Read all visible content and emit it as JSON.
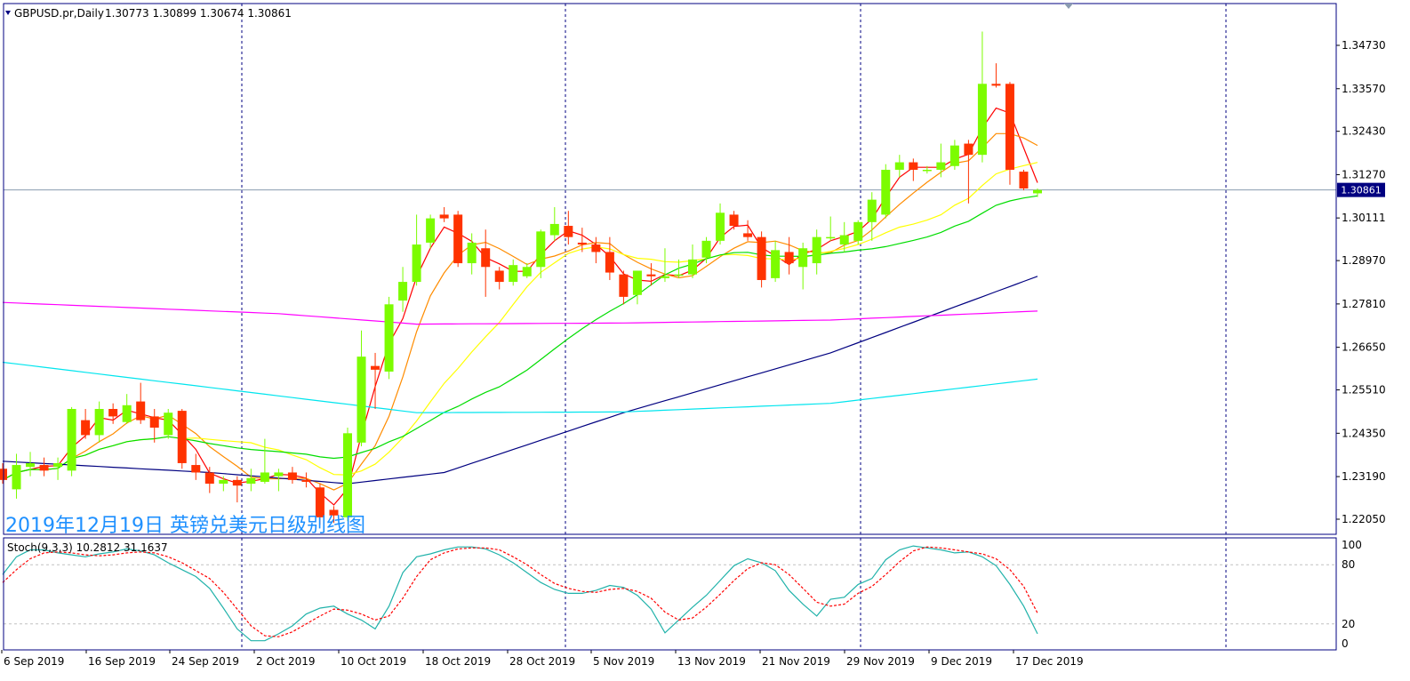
{
  "header": {
    "symbol": "GBPUSD.pr,Daily",
    "ohlc": "1.30773 1.30899 1.30674 1.30861"
  },
  "annotation": "2019年12月19日 英镑兑美元日级别线图",
  "price_tag": "1.30861",
  "stoch_label": "Stoch(9,3,3) 10.2812 31.1637",
  "colors": {
    "bull": "#7cfc00",
    "bear": "#ff3300",
    "ma_red": "#ff0000",
    "ma_orange": "#ff8c00",
    "ma_yellow": "#ffff00",
    "ma_green": "#00dd00",
    "ma_navy": "#000080",
    "ma_magenta": "#ff00ff",
    "ma_cyan": "#00e5ee",
    "frame": "#000080",
    "annotation": "#1e90ff"
  },
  "chart_data": {
    "type": "candlestick",
    "y_ticks": [
      "1.34730",
      "1.33570",
      "1.32430",
      "1.31270",
      "1.30111",
      "1.28970",
      "1.27810",
      "1.26650",
      "1.25510",
      "1.24350",
      "1.23190",
      "1.22050"
    ],
    "ylim": [
      1.219,
      1.3505
    ],
    "x_ticks": [
      "6 Sep 2019",
      "16 Sep 2019",
      "24 Sep 2019",
      "2 Oct 2019",
      "10 Oct 2019",
      "18 Oct 2019",
      "28 Oct 2019",
      "5 Nov 2019",
      "13 Nov 2019",
      "21 Nov 2019",
      "29 Nov 2019",
      "9 Dec 2019",
      "17 Dec 2019"
    ],
    "candles": [
      [
        1.234,
        1.2355,
        1.23,
        1.231
      ],
      [
        1.2285,
        1.238,
        1.226,
        1.235
      ],
      [
        1.2345,
        1.2385,
        1.232,
        1.2355
      ],
      [
        1.235,
        1.237,
        1.232,
        1.2335
      ],
      [
        1.2345,
        1.237,
        1.231,
        1.2355
      ],
      [
        1.2335,
        1.2505,
        1.232,
        1.25
      ],
      [
        1.247,
        1.25,
        1.242,
        1.243
      ],
      [
        1.243,
        1.252,
        1.241,
        1.25
      ],
      [
        1.25,
        1.2515,
        1.246,
        1.248
      ],
      [
        1.2465,
        1.254,
        1.246,
        1.251
      ],
      [
        1.252,
        1.257,
        1.246,
        1.247
      ],
      [
        1.248,
        1.25,
        1.241,
        1.245
      ],
      [
        1.243,
        1.25,
        1.242,
        1.249
      ],
      [
        1.2495,
        1.25,
        1.234,
        1.2355
      ],
      [
        1.235,
        1.238,
        1.231,
        1.233
      ],
      [
        1.233,
        1.2345,
        1.2275,
        1.23
      ],
      [
        1.23,
        1.232,
        1.228,
        1.231
      ],
      [
        1.231,
        1.232,
        1.225,
        1.2295
      ],
      [
        1.23,
        1.234,
        1.228,
        1.2315
      ],
      [
        1.2305,
        1.242,
        1.23,
        1.233
      ],
      [
        1.232,
        1.234,
        1.228,
        1.233
      ],
      [
        1.233,
        1.2345,
        1.23,
        1.231
      ],
      [
        1.231,
        1.233,
        1.229,
        1.2305
      ],
      [
        1.229,
        1.23,
        1.219,
        1.221
      ],
      [
        1.223,
        1.224,
        1.2195,
        1.2215
      ],
      [
        1.221,
        1.245,
        1.22,
        1.2435
      ],
      [
        1.241,
        1.271,
        1.24,
        1.264
      ],
      [
        1.2615,
        1.265,
        1.25,
        1.2605
      ],
      [
        1.26,
        1.28,
        1.258,
        1.278
      ],
      [
        1.279,
        1.288,
        1.276,
        1.284
      ],
      [
        1.284,
        1.302,
        1.283,
        1.294
      ],
      [
        1.2945,
        1.302,
        1.293,
        1.301
      ],
      [
        1.302,
        1.304,
        1.3,
        1.301
      ],
      [
        1.302,
        1.303,
        1.288,
        1.289
      ],
      [
        1.289,
        1.297,
        1.286,
        1.2945
      ],
      [
        1.293,
        1.298,
        1.28,
        1.288
      ],
      [
        1.287,
        1.288,
        1.282,
        1.284
      ],
      [
        1.284,
        1.29,
        1.283,
        1.2885
      ],
      [
        1.2855,
        1.289,
        1.285,
        1.288
      ],
      [
        1.288,
        1.298,
        1.285,
        1.2975
      ],
      [
        1.2965,
        1.304,
        1.295,
        1.2995
      ],
      [
        1.299,
        1.303,
        1.294,
        1.296
      ],
      [
        1.2945,
        1.2985,
        1.292,
        1.294
      ],
      [
        1.294,
        1.296,
        1.289,
        1.292
      ],
      [
        1.292,
        1.296,
        1.2845,
        1.2865
      ],
      [
        1.286,
        1.287,
        1.278,
        1.28
      ],
      [
        1.2805,
        1.287,
        1.278,
        1.287
      ],
      [
        1.286,
        1.289,
        1.283,
        1.2855
      ],
      [
        1.285,
        1.293,
        1.284,
        1.2855
      ],
      [
        1.286,
        1.29,
        1.285,
        1.286
      ],
      [
        1.286,
        1.294,
        1.285,
        1.29
      ],
      [
        1.2905,
        1.296,
        1.289,
        1.295
      ],
      [
        1.295,
        1.305,
        1.294,
        1.3025
      ],
      [
        1.302,
        1.303,
        1.298,
        1.299
      ],
      [
        1.297,
        1.3005,
        1.295,
        1.296
      ],
      [
        1.296,
        1.2975,
        1.2825,
        1.2845
      ],
      [
        1.285,
        1.295,
        1.284,
        1.2925
      ],
      [
        1.292,
        1.296,
        1.286,
        1.289
      ],
      [
        1.288,
        1.2945,
        1.282,
        1.293
      ],
      [
        1.289,
        1.298,
        1.286,
        1.296
      ],
      [
        1.296,
        1.3015,
        1.295,
        1.296
      ],
      [
        1.294,
        1.3,
        1.292,
        1.2965
      ],
      [
        1.295,
        1.3005,
        1.294,
        1.3
      ],
      [
        1.3,
        1.308,
        1.295,
        1.306
      ],
      [
        1.302,
        1.3155,
        1.301,
        1.314
      ],
      [
        1.314,
        1.318,
        1.312,
        1.316
      ],
      [
        1.316,
        1.317,
        1.311,
        1.314
      ],
      [
        1.314,
        1.315,
        1.313,
        1.314
      ],
      [
        1.314,
        1.321,
        1.312,
        1.316
      ],
      [
        1.315,
        1.322,
        1.314,
        1.3205
      ],
      [
        1.321,
        1.322,
        1.305,
        1.318
      ],
      [
        1.318,
        1.351,
        1.316,
        1.337
      ],
      [
        1.337,
        1.3425,
        1.336,
        1.3365
      ],
      [
        1.337,
        1.3375,
        1.31,
        1.314
      ],
      [
        1.3135,
        1.314,
        1.3085,
        1.309
      ],
      [
        1.3077,
        1.309,
        1.3067,
        1.3086
      ]
    ],
    "stoch_ticks": [
      "100",
      "80",
      "20",
      "0"
    ],
    "stoch_ylim": [
      0,
      100
    ],
    "stoch_main": [
      70,
      88,
      95,
      95,
      92,
      90,
      88,
      91,
      93,
      96,
      94,
      90,
      82,
      75,
      68,
      56,
      36,
      15,
      3,
      3,
      10,
      18,
      30,
      36,
      38,
      30,
      24,
      15,
      38,
      72,
      88,
      91,
      95,
      98,
      98,
      96,
      90,
      82,
      72,
      62,
      55,
      51,
      51,
      54,
      59,
      57,
      49,
      35,
      11,
      24,
      37,
      49,
      64,
      79,
      86,
      82,
      74,
      54,
      40,
      28,
      45,
      47,
      60,
      66,
      85,
      95,
      99,
      97,
      95,
      92,
      93,
      88,
      79,
      60,
      38,
      10
    ],
    "stoch_signal": [
      62,
      75,
      86,
      92,
      93,
      92,
      90,
      89,
      90,
      92,
      93,
      92,
      88,
      82,
      74,
      66,
      52,
      35,
      18,
      8,
      7,
      12,
      20,
      28,
      35,
      34,
      30,
      24,
      28,
      46,
      68,
      85,
      92,
      96,
      97,
      97,
      95,
      88,
      80,
      70,
      61,
      56,
      53,
      52,
      55,
      56,
      53,
      46,
      32,
      24,
      26,
      37,
      50,
      64,
      76,
      82,
      80,
      70,
      56,
      42,
      38,
      40,
      51,
      58,
      70,
      83,
      94,
      98,
      97,
      95,
      93,
      91,
      86,
      75,
      58,
      31
    ]
  }
}
